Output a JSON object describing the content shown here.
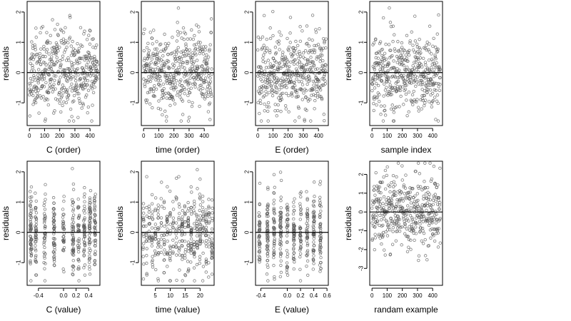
{
  "chart_data": [
    {
      "type": "scatter",
      "xlabel": "C (order)",
      "ylabel": "residuals",
      "xlim": [
        -15,
        465
      ],
      "ylim": [
        -1.75,
        2.35
      ],
      "x_ticks": [
        {
          "value": 0,
          "label": "0"
        },
        {
          "value": 100,
          "label": "100"
        },
        {
          "value": 200,
          "label": "200"
        },
        {
          "value": 300,
          "label": "300"
        },
        {
          "value": 400,
          "label": "400"
        }
      ],
      "y_ticks": [
        {
          "value": -1,
          "label": "-1"
        },
        {
          "value": 0,
          "label": "0"
        },
        {
          "value": 1,
          "label": "1"
        },
        {
          "value": 2,
          "label": "2"
        }
      ],
      "reference_line_y": 0,
      "points": {
        "n": 450,
        "pattern": "order",
        "x_range": [
          0,
          450
        ],
        "y_spread": 0.65,
        "y_range": [
          -1.6,
          2.2
        ],
        "seed": 11
      }
    },
    {
      "type": "scatter",
      "xlabel": "time (order)",
      "ylabel": "residuals",
      "xlim": [
        -15,
        465
      ],
      "ylim": [
        -1.75,
        2.35
      ],
      "x_ticks": [
        {
          "value": 0,
          "label": "0"
        },
        {
          "value": 100,
          "label": "100"
        },
        {
          "value": 200,
          "label": "200"
        },
        {
          "value": 300,
          "label": "300"
        },
        {
          "value": 400,
          "label": "400"
        }
      ],
      "y_ticks": [
        {
          "value": -1,
          "label": "-1"
        },
        {
          "value": 0,
          "label": "0"
        },
        {
          "value": 1,
          "label": "1"
        },
        {
          "value": 2,
          "label": "2"
        }
      ],
      "reference_line_y": 0,
      "points": {
        "n": 450,
        "pattern": "order",
        "x_range": [
          0,
          450
        ],
        "y_spread": 0.65,
        "y_range": [
          -1.6,
          2.2
        ],
        "seed": 23
      }
    },
    {
      "type": "scatter",
      "xlabel": "E (order)",
      "ylabel": "residuals",
      "xlim": [
        -15,
        465
      ],
      "ylim": [
        -1.75,
        2.35
      ],
      "x_ticks": [
        {
          "value": 0,
          "label": "0"
        },
        {
          "value": 100,
          "label": "100"
        },
        {
          "value": 200,
          "label": "200"
        },
        {
          "value": 300,
          "label": "300"
        },
        {
          "value": 400,
          "label": "400"
        }
      ],
      "y_ticks": [
        {
          "value": -1,
          "label": "-1"
        },
        {
          "value": 0,
          "label": "0"
        },
        {
          "value": 1,
          "label": "1"
        },
        {
          "value": 2,
          "label": "2"
        }
      ],
      "reference_line_y": 0,
      "points": {
        "n": 450,
        "pattern": "order",
        "x_range": [
          0,
          450
        ],
        "y_spread": 0.65,
        "y_range": [
          -1.6,
          2.2
        ],
        "seed": 37
      }
    },
    {
      "type": "scatter",
      "xlabel": "sample index",
      "ylabel": "residuals",
      "xlim": [
        -15,
        465
      ],
      "ylim": [
        -1.75,
        2.35
      ],
      "x_ticks": [
        {
          "value": 0,
          "label": "0"
        },
        {
          "value": 100,
          "label": "100"
        },
        {
          "value": 200,
          "label": "200"
        },
        {
          "value": 300,
          "label": "300"
        },
        {
          "value": 400,
          "label": "400"
        }
      ],
      "y_ticks": [
        {
          "value": -1,
          "label": "-1"
        },
        {
          "value": 0,
          "label": "0"
        },
        {
          "value": 1,
          "label": "1"
        },
        {
          "value": 2,
          "label": "2"
        }
      ],
      "reference_line_y": 0,
      "points": {
        "n": 450,
        "pattern": "order",
        "x_range": [
          0,
          450
        ],
        "y_spread": 0.65,
        "y_range": [
          -1.6,
          2.2
        ],
        "seed": 41
      }
    },
    {
      "type": "scatter",
      "xlabel": "C (value)",
      "ylabel": "residuals",
      "xlim": [
        -0.58,
        0.58
      ],
      "ylim": [
        -1.75,
        2.35
      ],
      "x_ticks": [
        {
          "value": -0.4,
          "label": "-0.4"
        },
        {
          "value": 0.0,
          "label": "0.0"
        },
        {
          "value": 0.2,
          "label": "0.2"
        },
        {
          "value": 0.4,
          "label": "0.4"
        }
      ],
      "y_ticks": [
        {
          "value": -1,
          "label": "-1"
        },
        {
          "value": 0,
          "label": "0"
        },
        {
          "value": 1,
          "label": "1"
        },
        {
          "value": 2,
          "label": "2"
        }
      ],
      "reference_line_y": 0,
      "points": {
        "n": 450,
        "pattern": "clusters",
        "clusters": [
          -0.52,
          -0.44,
          -0.3,
          -0.15,
          0.0,
          0.15,
          0.24,
          0.33,
          0.42,
          0.5
        ],
        "jitter": 0.012,
        "y_spread": 0.65,
        "y_range": [
          -1.6,
          2.2
        ],
        "seed": 53
      }
    },
    {
      "type": "scatter",
      "xlabel": "time (value)",
      "ylabel": "residuals",
      "xlim": [
        0.3,
        24.7
      ],
      "ylim": [
        -1.75,
        2.35
      ],
      "x_ticks": [
        {
          "value": 5,
          "label": "5"
        },
        {
          "value": 10,
          "label": "10"
        },
        {
          "value": 15,
          "label": "15"
        },
        {
          "value": 20,
          "label": "20"
        }
      ],
      "y_ticks": [
        {
          "value": -1,
          "label": "-1"
        },
        {
          "value": 0,
          "label": "0"
        },
        {
          "value": 1,
          "label": "1"
        },
        {
          "value": 2,
          "label": "2"
        }
      ],
      "reference_line_y": 0,
      "points": {
        "n": 450,
        "pattern": "clusters",
        "clusters": [
          1,
          2,
          3,
          4,
          5,
          6,
          7,
          8,
          9,
          10,
          11,
          12,
          13,
          14,
          15,
          16,
          17,
          18,
          19,
          20,
          21,
          22,
          23,
          24
        ],
        "jitter": 0.15,
        "y_spread": 0.65,
        "y_range": [
          -1.6,
          2.2
        ],
        "seed": 67
      }
    },
    {
      "type": "scatter",
      "xlabel": "E (value)",
      "ylabel": "residuals",
      "xlim": [
        -0.48,
        0.62
      ],
      "ylim": [
        -1.75,
        2.35
      ],
      "x_ticks": [
        {
          "value": -0.4,
          "label": "-0.4"
        },
        {
          "value": 0.0,
          "label": "0.0"
        },
        {
          "value": 0.2,
          "label": "0.2"
        },
        {
          "value": 0.4,
          "label": "0.4"
        },
        {
          "value": 0.6,
          "label": "0.6"
        }
      ],
      "y_ticks": [
        {
          "value": -1,
          "label": "-1"
        },
        {
          "value": 0,
          "label": "0"
        },
        {
          "value": 1,
          "label": "1"
        },
        {
          "value": 2,
          "label": "2"
        }
      ],
      "reference_line_y": 0,
      "points": {
        "n": 450,
        "pattern": "clusters",
        "clusters": [
          -0.42,
          -0.3,
          -0.2,
          -0.1,
          0.0,
          0.1,
          0.2,
          0.3,
          0.4,
          0.5
        ],
        "jitter": 0.01,
        "y_spread": 0.65,
        "y_range": [
          -1.6,
          2.2
        ],
        "seed": 79
      }
    },
    {
      "type": "scatter",
      "xlabel": "randam example",
      "ylabel": "residuals",
      "xlim": [
        -15,
        465
      ],
      "ylim": [
        -3.9,
        2.7
      ],
      "x_ticks": [
        {
          "value": 0,
          "label": "0"
        },
        {
          "value": 100,
          "label": "100"
        },
        {
          "value": 200,
          "label": "200"
        },
        {
          "value": 300,
          "label": "300"
        },
        {
          "value": 400,
          "label": "400"
        }
      ],
      "y_ticks": [
        {
          "value": -3,
          "label": "-3"
        },
        {
          "value": -2,
          "label": "-2"
        },
        {
          "value": -1,
          "label": "-1"
        },
        {
          "value": 0,
          "label": "0"
        },
        {
          "value": 1,
          "label": "1"
        },
        {
          "value": 2,
          "label": "2"
        }
      ],
      "reference_line_y": 0,
      "points": {
        "n": 450,
        "pattern": "order",
        "x_range": [
          0,
          450
        ],
        "y_spread": 1.0,
        "y_range": [
          -3.7,
          2.6
        ],
        "seed": 97
      }
    }
  ]
}
